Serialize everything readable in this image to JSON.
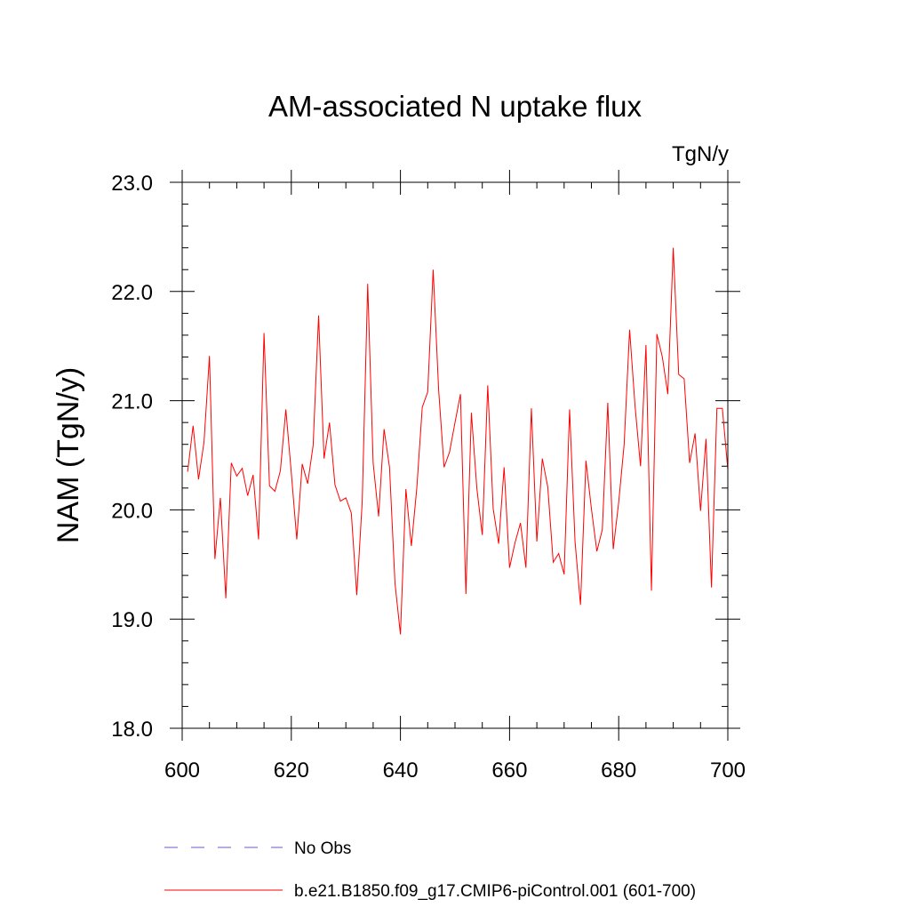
{
  "chart_data": {
    "type": "line",
    "title": "AM-associated N uptake flux",
    "units_label": "TgN/y",
    "xlabel": "",
    "ylabel": "NAM  (TgN/y)",
    "xlim": [
      600,
      700
    ],
    "ylim": [
      18.0,
      23.0
    ],
    "x_ticks": [
      600,
      620,
      640,
      660,
      680,
      700
    ],
    "x_tick_labels": [
      "600",
      "620",
      "640",
      "660",
      "680",
      "700"
    ],
    "y_ticks": [
      18.0,
      19.0,
      20.0,
      21.0,
      22.0,
      23.0
    ],
    "y_tick_labels": [
      "18.0",
      "19.0",
      "20.0",
      "21.0",
      "22.0",
      "23.0"
    ],
    "x_minor_step": 5,
    "y_minor_step": 0.2,
    "grid": false,
    "legend_position": "bottom",
    "series": [
      {
        "name": "b.e21.B1850.f09_g17.CMIP6-piControl.001 (601-700)",
        "color": "#ff0000",
        "style": "solid",
        "x": [
          601,
          602,
          603,
          604,
          605,
          606,
          607,
          608,
          609,
          610,
          611,
          612,
          613,
          614,
          615,
          616,
          617,
          618,
          619,
          620,
          621,
          622,
          623,
          624,
          625,
          626,
          627,
          628,
          629,
          630,
          631,
          632,
          633,
          634,
          635,
          636,
          637,
          638,
          639,
          640,
          641,
          642,
          643,
          644,
          645,
          646,
          647,
          648,
          649,
          650,
          651,
          652,
          653,
          654,
          655,
          656,
          657,
          658,
          659,
          660,
          661,
          662,
          663,
          664,
          665,
          666,
          667,
          668,
          669,
          670,
          671,
          672,
          673,
          674,
          675,
          676,
          677,
          678,
          679,
          680,
          681,
          682,
          683,
          684,
          685,
          686,
          687,
          688,
          689,
          690,
          691,
          692,
          693,
          694,
          695,
          696,
          697,
          698,
          699,
          700
        ],
        "values": [
          20.35,
          20.77,
          20.28,
          20.62,
          21.41,
          19.55,
          20.11,
          19.19,
          20.43,
          20.31,
          20.38,
          20.13,
          20.32,
          19.73,
          21.62,
          20.22,
          20.17,
          20.36,
          20.92,
          20.34,
          19.73,
          20.42,
          20.24,
          20.59,
          21.78,
          20.47,
          20.8,
          20.23,
          20.08,
          20.11,
          19.97,
          19.22,
          20.08,
          22.07,
          20.43,
          19.94,
          20.74,
          20.39,
          19.33,
          18.86,
          20.19,
          19.67,
          20.2,
          20.94,
          21.08,
          22.2,
          21.1,
          20.39,
          20.53,
          20.8,
          21.06,
          19.23,
          20.89,
          20.2,
          19.77,
          21.14,
          20.01,
          19.69,
          20.39,
          19.47,
          19.7,
          19.88,
          19.47,
          20.93,
          19.71,
          20.47,
          20.21,
          19.52,
          19.6,
          19.41,
          20.92,
          19.71,
          19.13,
          20.45,
          20.01,
          19.62,
          19.82,
          20.98,
          19.64,
          20.07,
          20.6,
          21.65,
          20.95,
          20.4,
          21.51,
          19.26,
          21.61,
          21.4,
          21.06,
          22.4,
          21.24,
          21.2,
          20.43,
          20.7,
          19.99,
          20.65,
          19.29,
          20.93,
          20.93,
          20.37
        ]
      },
      {
        "name": "No Obs",
        "color": "#6a5acd",
        "style": "dashed",
        "x": [],
        "values": []
      }
    ]
  }
}
